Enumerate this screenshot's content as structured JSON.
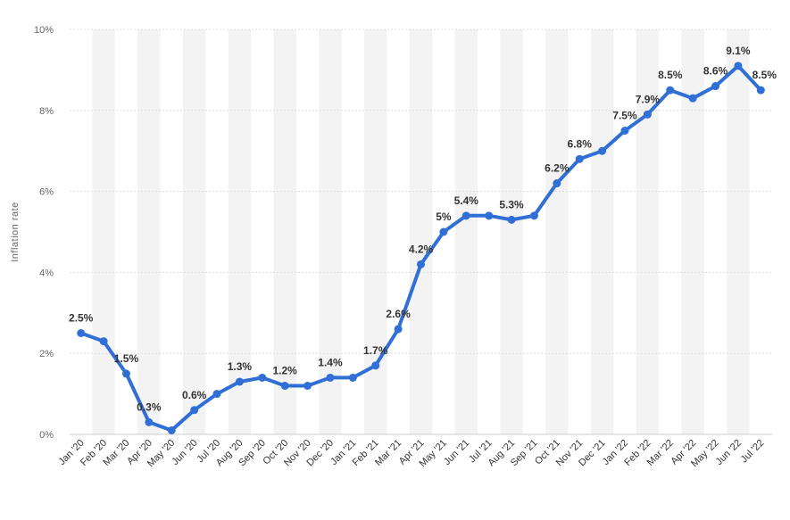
{
  "chart_data": {
    "type": "line",
    "title": "",
    "xlabel": "",
    "ylabel": "Inflation rate",
    "ylim": [
      0,
      10
    ],
    "y_ticks": [
      "0%",
      "2%",
      "4%",
      "6%",
      "8%",
      "10%"
    ],
    "grid": true,
    "colors": {
      "line": "#2f6fd6",
      "band": "#f3f3f3",
      "grid": "#dddddd"
    },
    "categories": [
      "Jan '20",
      "Feb '20",
      "Mar '20",
      "Apr '20",
      "May '20",
      "Jun '20",
      "Jul '20",
      "Aug '20",
      "Sep '20",
      "Oct '20",
      "Nov '20",
      "Dec '20",
      "Jan '21",
      "Feb '21",
      "Mar '21",
      "Apr '21",
      "May '21",
      "Jun '21",
      "Jul '21",
      "Aug '21",
      "Sep '21",
      "Oct '21",
      "Nov '21",
      "Dec '21",
      "Jan '22",
      "Feb '22",
      "Mar '22",
      "Apr '22",
      "May '22",
      "Jun '22",
      "Jul '22"
    ],
    "series": [
      {
        "name": "Inflation rate",
        "values": [
          2.5,
          2.3,
          1.5,
          0.3,
          0.1,
          0.6,
          1.0,
          1.3,
          1.4,
          1.2,
          1.2,
          1.4,
          1.4,
          1.7,
          2.6,
          4.2,
          5.0,
          5.4,
          5.4,
          5.3,
          5.4,
          6.2,
          6.8,
          7.0,
          7.5,
          7.9,
          8.5,
          8.3,
          8.6,
          9.1,
          8.5
        ]
      }
    ],
    "data_labels": [
      {
        "index": 0,
        "text": "2.5%"
      },
      {
        "index": 2,
        "text": "1.5%"
      },
      {
        "index": 3,
        "text": "0.3%"
      },
      {
        "index": 5,
        "text": "0.6%"
      },
      {
        "index": 7,
        "text": "1.3%"
      },
      {
        "index": 9,
        "text": "1.2%"
      },
      {
        "index": 11,
        "text": "1.4%"
      },
      {
        "index": 13,
        "text": "1.7%"
      },
      {
        "index": 14,
        "text": "2.6%"
      },
      {
        "index": 15,
        "text": "4.2%"
      },
      {
        "index": 16,
        "text": "5%"
      },
      {
        "index": 17,
        "text": "5.4%"
      },
      {
        "index": 19,
        "text": "5.3%"
      },
      {
        "index": 21,
        "text": "6.2%"
      },
      {
        "index": 22,
        "text": "6.8%"
      },
      {
        "index": 24,
        "text": "7.5%"
      },
      {
        "index": 25,
        "text": "7.9%"
      },
      {
        "index": 26,
        "text": "8.5%"
      },
      {
        "index": 28,
        "text": "8.6%"
      },
      {
        "index": 29,
        "text": "9.1%"
      },
      {
        "index": 30,
        "text": "8.5%"
      }
    ]
  }
}
